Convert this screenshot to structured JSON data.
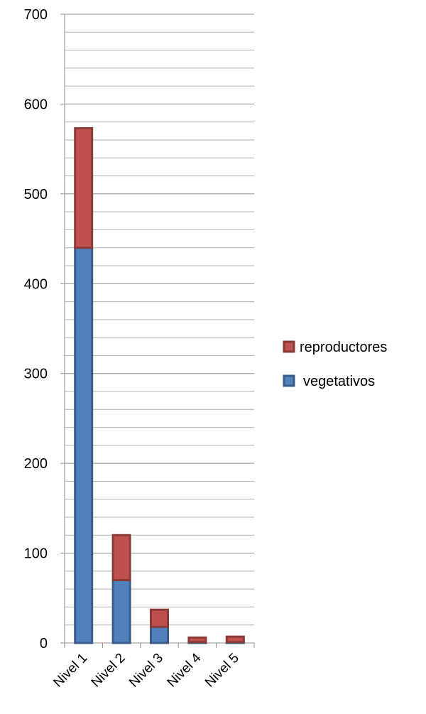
{
  "chart_data": {
    "type": "bar",
    "stacked": true,
    "categories": [
      "Nivel 1",
      "Nivel 2",
      "Nivel 3",
      "Nivel 4",
      "Nivel 5"
    ],
    "series": [
      {
        "name": "vegetativos",
        "values": [
          440,
          70,
          18,
          1,
          1
        ],
        "color": "#4F81BD"
      },
      {
        "name": "reproductores",
        "values": [
          133,
          50,
          19,
          5,
          6
        ],
        "color": "#C0504D"
      }
    ],
    "ylim": [
      0,
      700
    ],
    "yticks": [
      0,
      100,
      200,
      300,
      400,
      500,
      600,
      700
    ],
    "grid": true,
    "legend_position": "right"
  }
}
